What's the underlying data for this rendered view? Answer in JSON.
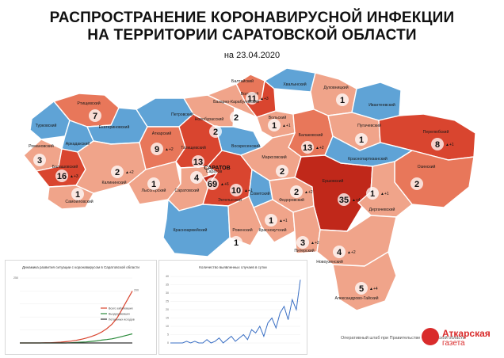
{
  "header": {
    "title_line1": "РАСПРОСТРАНЕНИЕ КОРОНАВИРУСНОЙ ИНФЕКЦИИ",
    "title_line2": "НА ТЕРРИТОРИИ САРАТОВСКОЙ ОБЛАСТИ",
    "date": "на 23.04.2020"
  },
  "colors": {
    "zero": "#5fa3d6",
    "low": "#f0a48a",
    "mid": "#e8775a",
    "high": "#d9452f",
    "top": "#c0281a"
  },
  "map": {
    "city_label": "САРАТОВ",
    "regions": [
      {
        "id": "rtishchevo",
        "name": "Ртищевский",
        "count": "7",
        "delta": "",
        "level": "mid"
      },
      {
        "id": "turki",
        "name": "Турковский",
        "count": "",
        "delta": "",
        "level": "zero"
      },
      {
        "id": "arkadak",
        "name": "Аркадакский",
        "count": "",
        "delta": "",
        "level": "zero"
      },
      {
        "id": "ekaterinovka",
        "name": "Екатериновский",
        "count": "",
        "delta": "",
        "level": "zero"
      },
      {
        "id": "petrovsk",
        "name": "Петровский",
        "count": "",
        "delta": "",
        "level": "zero"
      },
      {
        "id": "baltay",
        "name": "Балтайский",
        "count": "",
        "delta": "",
        "level": "mid"
      },
      {
        "id": "volsk",
        "name": "Вольский",
        "count": "11",
        "delta": "▲+3",
        "level": "high"
      },
      {
        "id": "khvalynsk",
        "name": "Хвалынский",
        "count": "",
        "delta": "",
        "level": "zero"
      },
      {
        "id": "dukhovnitsk",
        "name": "Духовницкий",
        "count": "1",
        "delta": "",
        "level": "low"
      },
      {
        "id": "ivanteevka",
        "name": "Ивантеевский",
        "count": "",
        "delta": "",
        "level": "zero"
      },
      {
        "id": "romanovka",
        "name": "Романовский",
        "count": "3",
        "delta": "",
        "level": "low"
      },
      {
        "id": "balashov",
        "name": "Балашовский",
        "count": "16",
        "delta": "▲+3",
        "level": "high"
      },
      {
        "id": "samoylovka",
        "name": "Самойловский",
        "count": "1",
        "delta": "",
        "level": "low"
      },
      {
        "id": "kalininsk",
        "name": "Калининский",
        "count": "2",
        "delta": "▲+2",
        "level": "low"
      },
      {
        "id": "atkarsk",
        "name": "Аткарский",
        "count": "9",
        "delta": "▲+2",
        "level": "mid"
      },
      {
        "id": "lysye_gory",
        "name": "Лысогорский",
        "count": "1",
        "delta": "",
        "level": "low"
      },
      {
        "id": "tatishchevo",
        "name": "Татищевский",
        "count": "13",
        "delta": "",
        "level": "high"
      },
      {
        "id": "novoburasy",
        "name": "Новобурасский",
        "count": "2",
        "delta": "",
        "level": "low"
      },
      {
        "id": "voskresenskoe",
        "name": "Воскресенский",
        "count": "",
        "delta": "",
        "level": "zero"
      },
      {
        "id": "volsk_city",
        "name": "Вольский",
        "count": "1",
        "delta": "▲+1",
        "level": "low"
      },
      {
        "id": "bazarny_karabulak",
        "name": "Базарно-Карабулакский",
        "count": "2",
        "delta": "",
        "level": "low"
      },
      {
        "id": "balakovo",
        "name": "Балаковский",
        "count": "13",
        "delta": "▲+2",
        "level": "mid"
      },
      {
        "id": "pugachev",
        "name": "Пугачевский",
        "count": "1",
        "delta": "",
        "level": "low"
      },
      {
        "id": "perelyub",
        "name": "Перелюбский",
        "count": "8",
        "delta": "▲+1",
        "level": "high"
      },
      {
        "id": "saratovsky",
        "name": "Саратовский",
        "count": "4",
        "delta": "",
        "level": "low"
      },
      {
        "id": "saratov",
        "name": "Саратов",
        "count": "69",
        "delta": "▲+6",
        "level": "top"
      },
      {
        "id": "engels",
        "name": "Энгельсский",
        "count": "10",
        "delta": "▲+1",
        "level": "high"
      },
      {
        "id": "marks",
        "name": "Марксовский",
        "count": "2",
        "delta": "",
        "level": "low"
      },
      {
        "id": "sovetskoe",
        "name": "Советский",
        "count": "",
        "delta": "",
        "level": "zero"
      },
      {
        "id": "fyodorovka",
        "name": "Федоровский",
        "count": "2",
        "delta": "▲+2",
        "level": "low"
      },
      {
        "id": "ershov",
        "name": "Ершовский",
        "count": "35",
        "delta": "▲+4",
        "level": "top"
      },
      {
        "id": "krasnopartizansk",
        "name": "Краснопартизанский",
        "count": "",
        "delta": "",
        "level": "zero"
      },
      {
        "id": "ozinki",
        "name": "Озинский",
        "count": "2",
        "delta": "",
        "level": "mid"
      },
      {
        "id": "dergachi",
        "name": "Дергачевский",
        "count": "1",
        "delta": "▲+1",
        "level": "low"
      },
      {
        "id": "krasnoarmeysk",
        "name": "Красноармейский",
        "count": "",
        "delta": "",
        "level": "zero"
      },
      {
        "id": "rovnoe",
        "name": "Ровенский",
        "count": "1",
        "delta": "",
        "level": "low"
      },
      {
        "id": "krasny_kut",
        "name": "Краснокутский",
        "count": "1",
        "delta": "▲+1",
        "level": "low"
      },
      {
        "id": "piterka",
        "name": "Питерский",
        "count": "3",
        "delta": "▲+2",
        "level": "low"
      },
      {
        "id": "novouzensk",
        "name": "Новоузенский",
        "count": "4",
        "delta": "▲+2",
        "level": "low"
      },
      {
        "id": "aleksandrov_gay",
        "name": "Александрово-Гайский",
        "count": "5",
        "delta": "▲+4",
        "level": "low"
      }
    ]
  },
  "chart_data": [
    {
      "type": "line",
      "title": "Динамика развития ситуации с коронавирусом в Саратовской области",
      "y_max_label": "250",
      "end_label": "200",
      "series": [
        {
          "name": "Всего заболевших",
          "color": "#d9452f",
          "values": [
            0,
            0,
            0,
            0,
            0,
            1,
            1,
            2,
            3,
            5,
            7,
            10,
            14,
            19,
            25,
            32,
            42,
            55,
            72,
            95,
            130,
            165,
            200
          ]
        },
        {
          "name": "Выздоровевших",
          "color": "#2a8a3a",
          "values": [
            0,
            0,
            0,
            0,
            0,
            0,
            0,
            0,
            0,
            0,
            1,
            2,
            3,
            4,
            6,
            8,
            11,
            13,
            16,
            20,
            25,
            30,
            35
          ]
        },
        {
          "name": "Летальных исходов",
          "color": "#333333",
          "values": [
            0,
            0,
            0,
            0,
            0,
            0,
            0,
            0,
            0,
            0,
            0,
            0,
            0,
            0,
            0,
            0,
            0,
            0,
            0,
            0,
            0,
            0,
            0
          ]
        }
      ]
    },
    {
      "type": "line",
      "title": "Количество выявленных случаев в сутки",
      "ylim": [
        0,
        40
      ],
      "series": [
        {
          "color": "#3a6fc4",
          "values": [
            0,
            0,
            0,
            0,
            1,
            0,
            1,
            0,
            0,
            2,
            0,
            1,
            3,
            0,
            2,
            4,
            1,
            3,
            5,
            2,
            8,
            6,
            10,
            4,
            12,
            15,
            9,
            18,
            22,
            14,
            26,
            20,
            38
          ]
        }
      ]
    }
  ],
  "footer": {
    "text": "Оперативный штаб при Правительстве Саратовской области"
  },
  "logo": {
    "line1": "Аткарская",
    "line2": "газета"
  }
}
